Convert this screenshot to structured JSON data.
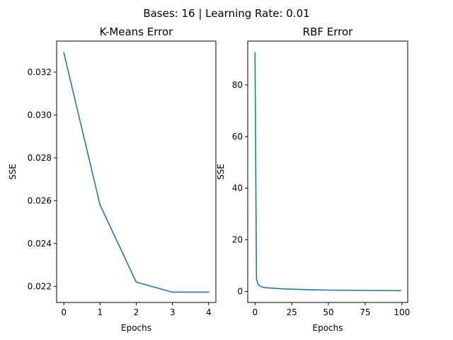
{
  "figure": {
    "suptitle": "Bases: 16 | Learning Rate: 0.01"
  },
  "chart_data": [
    {
      "type": "line",
      "title": "K-Means Error",
      "xlabel": "Epochs",
      "ylabel": "SSE",
      "xlim": [
        -0.2,
        4.2
      ],
      "ylim": [
        0.02125,
        0.03345
      ],
      "xticks": [
        0,
        1,
        2,
        3,
        4
      ],
      "xtick_labels": [
        "0",
        "1",
        "2",
        "3",
        "4"
      ],
      "yticks": [
        0.022,
        0.024,
        0.026,
        0.028,
        0.03,
        0.032
      ],
      "ytick_labels": [
        "0.022",
        "0.024",
        "0.026",
        "0.028",
        "0.030",
        "0.032"
      ],
      "grid": false,
      "series": [
        {
          "color": "#1f77b4",
          "x": [
            0,
            1,
            2,
            3,
            4
          ],
          "y": [
            0.0329,
            0.0258,
            0.0222,
            0.02173,
            0.02173
          ]
        }
      ]
    },
    {
      "type": "line",
      "title": "RBF Error",
      "xlabel": "Epochs",
      "ylabel": "SSE",
      "xlim": [
        -4.95,
        103.95
      ],
      "ylim": [
        -4.25,
        97.0
      ],
      "xticks": [
        0,
        25,
        50,
        75,
        100
      ],
      "xtick_labels": [
        "0",
        "25",
        "50",
        "75",
        "100"
      ],
      "yticks": [
        0,
        20,
        40,
        60,
        80
      ],
      "ytick_labels": [
        "0",
        "20",
        "40",
        "60",
        "80"
      ],
      "grid": false,
      "series": [
        {
          "color": "#1f77b4",
          "x": [
            0,
            1,
            2,
            3,
            4,
            5,
            7,
            10,
            15,
            20,
            25,
            30,
            40,
            50,
            60,
            70,
            80,
            90,
            99
          ],
          "y": [
            92.5,
            5.0,
            2.8,
            2.2,
            1.9,
            1.7,
            1.5,
            1.35,
            1.15,
            1.0,
            0.9,
            0.8,
            0.65,
            0.55,
            0.48,
            0.42,
            0.38,
            0.35,
            0.32
          ]
        }
      ]
    }
  ]
}
